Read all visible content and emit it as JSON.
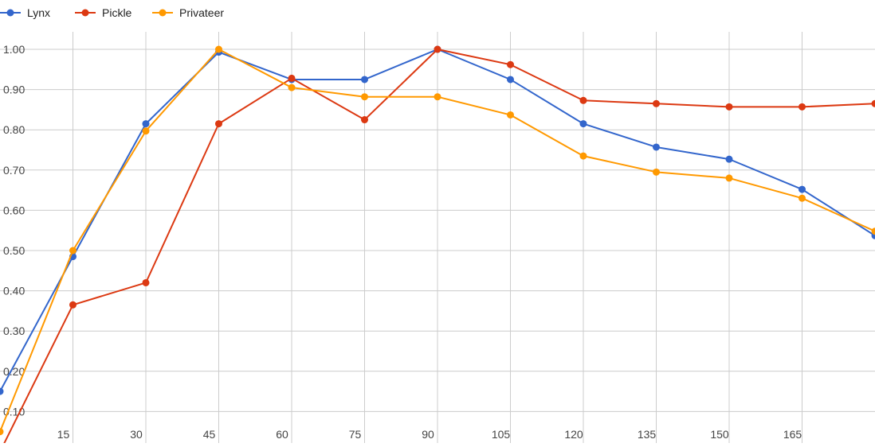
{
  "chart_data": {
    "type": "line",
    "title": "",
    "xlabel": "",
    "ylabel": "",
    "x": [
      0,
      15,
      30,
      45,
      60,
      75,
      90,
      105,
      120,
      135,
      150,
      165,
      180
    ],
    "x_tick_labels": [
      "15",
      "30",
      "45",
      "60",
      "75",
      "90",
      "105",
      "120",
      "135",
      "150",
      "165"
    ],
    "x_tick_values": [
      15,
      30,
      45,
      60,
      75,
      90,
      105,
      120,
      135,
      150,
      165
    ],
    "y_tick_labels": [
      "0.10",
      "0.20",
      "0.30",
      "0.40",
      "0.50",
      "0.60",
      "0.70",
      "0.80",
      "0.90",
      "1.00"
    ],
    "y_tick_values": [
      0.1,
      0.2,
      0.3,
      0.4,
      0.5,
      0.6,
      0.7,
      0.8,
      0.9,
      1.0
    ],
    "xlim": [
      0,
      180
    ],
    "ylim": [
      0.0,
      1.02
    ],
    "grid": true,
    "legend_position": "top-left",
    "series": [
      {
        "name": "Lynx",
        "color": "#3366cc",
        "values": [
          0.15,
          0.485,
          0.815,
          0.993,
          0.925,
          0.925,
          1.0,
          0.925,
          0.815,
          0.757,
          0.727,
          0.652,
          0.537
        ]
      },
      {
        "name": "Pickle",
        "color": "#dc3912",
        "values": [
          0.0,
          0.365,
          0.42,
          0.815,
          0.928,
          0.825,
          1.0,
          0.962,
          0.873,
          0.865,
          0.857,
          0.857,
          0.865
        ]
      },
      {
        "name": "Privateer",
        "color": "#ff9900",
        "values": [
          0.05,
          0.5,
          0.797,
          1.0,
          0.905,
          0.882,
          0.882,
          0.837,
          0.735,
          0.695,
          0.68,
          0.63,
          0.548
        ]
      }
    ]
  }
}
